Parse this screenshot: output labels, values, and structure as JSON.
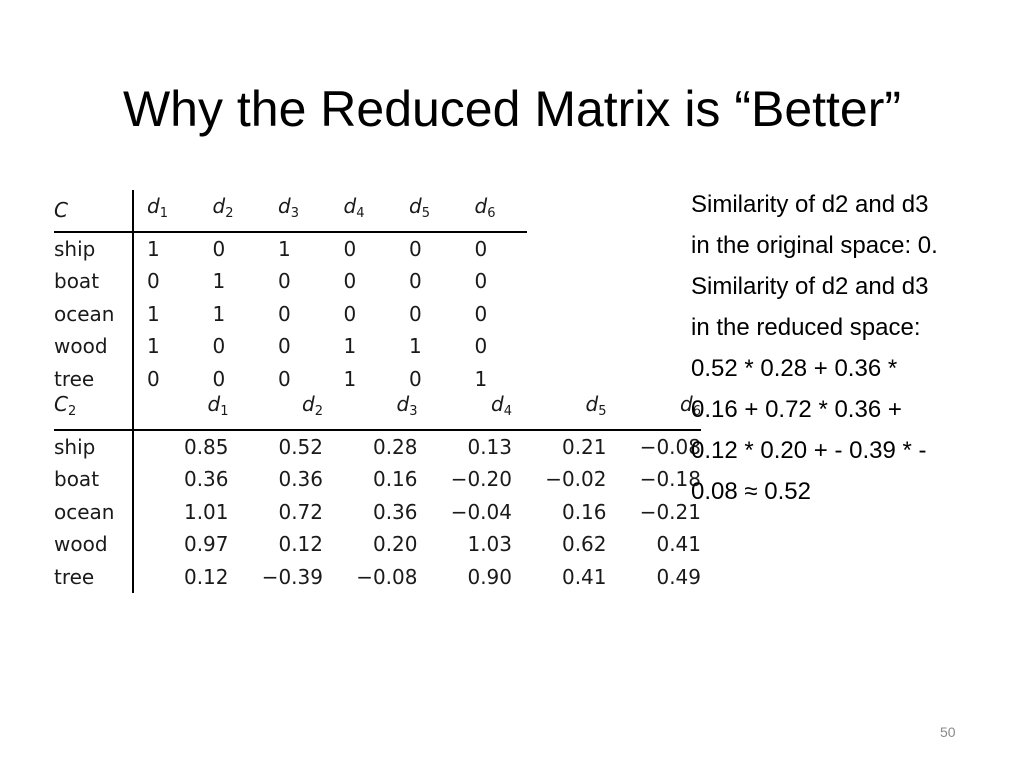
{
  "slide": {
    "title": "Why the Reduced Matrix is “Better”",
    "page_number": "50"
  },
  "matrix_c": {
    "corner": "C",
    "columns": [
      {
        "base": "d",
        "sub": "1"
      },
      {
        "base": "d",
        "sub": "2"
      },
      {
        "base": "d",
        "sub": "3"
      },
      {
        "base": "d",
        "sub": "4"
      },
      {
        "base": "d",
        "sub": "5"
      },
      {
        "base": "d",
        "sub": "6"
      }
    ],
    "rows": [
      {
        "label": "ship",
        "values": [
          "1",
          "0",
          "1",
          "0",
          "0",
          "0"
        ]
      },
      {
        "label": "boat",
        "values": [
          "0",
          "1",
          "0",
          "0",
          "0",
          "0"
        ]
      },
      {
        "label": "ocean",
        "values": [
          "1",
          "1",
          "0",
          "0",
          "0",
          "0"
        ]
      },
      {
        "label": "wood",
        "values": [
          "1",
          "0",
          "0",
          "1",
          "1",
          "0"
        ]
      },
      {
        "label": "tree",
        "values": [
          "0",
          "0",
          "0",
          "1",
          "0",
          "1"
        ]
      }
    ]
  },
  "matrix_c2": {
    "corner_base": "C",
    "corner_sub": "2",
    "columns": [
      {
        "base": "d",
        "sub": "1"
      },
      {
        "base": "d",
        "sub": "2"
      },
      {
        "base": "d",
        "sub": "3"
      },
      {
        "base": "d",
        "sub": "4"
      },
      {
        "base": "d",
        "sub": "5"
      },
      {
        "base": "d",
        "sub": "6"
      }
    ],
    "rows": [
      {
        "label": "ship",
        "values": [
          "0.85",
          "0.52",
          "0.28",
          "0.13",
          "0.21",
          "−0.08"
        ]
      },
      {
        "label": "boat",
        "values": [
          "0.36",
          "0.36",
          "0.16",
          "−0.20",
          "−0.02",
          "−0.18"
        ]
      },
      {
        "label": "ocean",
        "values": [
          "1.01",
          "0.72",
          "0.36",
          "−0.04",
          "0.16",
          "−0.21"
        ]
      },
      {
        "label": "wood",
        "values": [
          "0.97",
          "0.12",
          "0.20",
          "1.03",
          "0.62",
          "0.41"
        ]
      },
      {
        "label": "tree",
        "values": [
          "0.12",
          "−0.39",
          "−0.08",
          "0.90",
          "0.41",
          "0.49"
        ]
      }
    ]
  },
  "explanation": {
    "lines": [
      "Similarity of d2 and d3",
      "in the original space: 0.",
      "Similarity of d2 and d3",
      "in the reduced space:",
      "0.52 * 0.28 + 0.36 *",
      "0.16 + 0.72 * 0.36 +",
      "0.12 * 0.20 + - 0.39 * -",
      "0.08 ≈ 0.52"
    ]
  }
}
